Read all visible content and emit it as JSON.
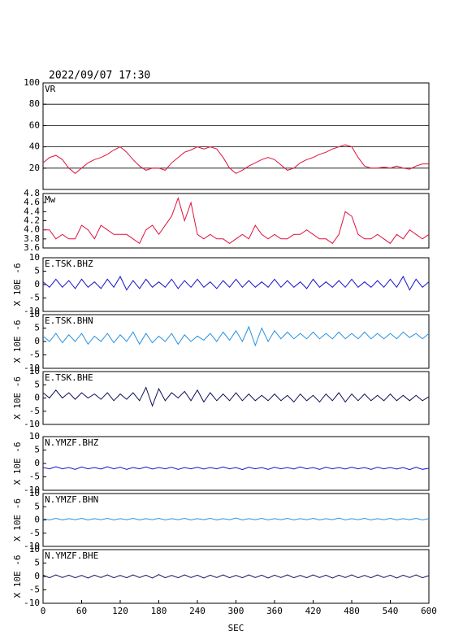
{
  "chart_data": [
    {
      "type": "line",
      "title": "2022/09/07 17:30",
      "label": "VR",
      "color": "#e0103c",
      "grid": true,
      "x": [
        0,
        10,
        20,
        30,
        40,
        50,
        60,
        70,
        80,
        90,
        100,
        110,
        120,
        130,
        140,
        150,
        160,
        170,
        180,
        190,
        200,
        210,
        220,
        230,
        240,
        250,
        260,
        270,
        280,
        290,
        300,
        310,
        320,
        330,
        340,
        350,
        360,
        370,
        380,
        390,
        400,
        410,
        420,
        430,
        440,
        450,
        460,
        470,
        480,
        490,
        500,
        510,
        520,
        530,
        540,
        550,
        560,
        570,
        580,
        590,
        600
      ],
      "values": [
        25,
        30,
        32,
        28,
        20,
        15,
        20,
        25,
        28,
        30,
        33,
        37,
        40,
        35,
        28,
        22,
        18,
        20,
        20,
        18,
        25,
        30,
        35,
        37,
        40,
        38,
        40,
        38,
        30,
        20,
        15,
        18,
        22,
        25,
        28,
        30,
        28,
        23,
        18,
        20,
        25,
        28,
        30,
        33,
        35,
        38,
        40,
        42,
        40,
        30,
        22,
        20,
        20,
        21,
        20,
        22,
        20,
        19,
        22,
        24,
        24
      ],
      "xlim": [
        0,
        600
      ],
      "ylim": [
        0,
        100
      ],
      "yticks": [
        20,
        40,
        60,
        80,
        100
      ]
    },
    {
      "type": "line",
      "label": "Mw",
      "color": "#e0103c",
      "x": [
        0,
        10,
        20,
        30,
        40,
        50,
        60,
        70,
        80,
        90,
        100,
        110,
        120,
        130,
        140,
        150,
        160,
        170,
        180,
        190,
        200,
        210,
        220,
        230,
        240,
        250,
        260,
        270,
        280,
        290,
        300,
        310,
        320,
        330,
        340,
        350,
        360,
        370,
        380,
        390,
        400,
        410,
        420,
        430,
        440,
        450,
        460,
        470,
        480,
        490,
        500,
        510,
        520,
        530,
        540,
        550,
        560,
        570,
        580,
        590,
        600
      ],
      "values": [
        4.0,
        4.0,
        3.8,
        3.9,
        3.8,
        3.8,
        4.1,
        4.0,
        3.8,
        4.1,
        4.0,
        3.9,
        3.9,
        3.9,
        3.8,
        3.7,
        4.0,
        4.1,
        3.9,
        4.1,
        4.3,
        4.7,
        4.2,
        4.6,
        3.9,
        3.8,
        3.9,
        3.8,
        3.8,
        3.7,
        3.8,
        3.9,
        3.8,
        4.1,
        3.9,
        3.8,
        3.9,
        3.8,
        3.8,
        3.9,
        3.9,
        4.0,
        3.9,
        3.8,
        3.8,
        3.7,
        3.9,
        4.4,
        4.3,
        3.9,
        3.8,
        3.8,
        3.9,
        3.8,
        3.7,
        3.9,
        3.8,
        4.0,
        3.9,
        3.8,
        3.9
      ],
      "xlim": [
        0,
        600
      ],
      "ylim": [
        3.6,
        4.8
      ],
      "yticks": [
        3.6,
        3.8,
        {
          "value": 4,
          "label": "4.0"
        },
        4.2,
        4.4,
        4.6,
        4.8
      ]
    },
    {
      "type": "line",
      "label": "E.TSK.BHZ",
      "ylabel": "X 10E -6",
      "color": "#1414c8",
      "x": [
        0,
        10,
        20,
        30,
        40,
        50,
        60,
        70,
        80,
        90,
        100,
        110,
        120,
        130,
        140,
        150,
        160,
        170,
        180,
        190,
        200,
        210,
        220,
        230,
        240,
        250,
        260,
        270,
        280,
        290,
        300,
        310,
        320,
        330,
        340,
        350,
        360,
        370,
        380,
        390,
        400,
        410,
        420,
        430,
        440,
        450,
        460,
        470,
        480,
        490,
        500,
        510,
        520,
        530,
        540,
        550,
        560,
        570,
        580,
        590,
        600
      ],
      "values": [
        1,
        -1,
        2,
        -1,
        1.5,
        -1.5,
        2,
        -1,
        1,
        -1.5,
        2,
        -1,
        3,
        -2,
        1.5,
        -1.5,
        2,
        -1,
        1,
        -1,
        2,
        -1.5,
        1.5,
        -1,
        2,
        -1,
        1,
        -1.5,
        1.5,
        -1,
        2,
        -1,
        1.5,
        -1,
        1,
        -1,
        2,
        -1,
        1.5,
        -1,
        1,
        -1.5,
        2,
        -1,
        1,
        -1,
        1.5,
        -1,
        2,
        -1,
        1,
        -1,
        1.5,
        -1,
        2,
        -1,
        3,
        -2,
        2,
        -1,
        1
      ],
      "xlim": [
        0,
        600
      ],
      "ylim": [
        -10,
        10
      ],
      "yticks": [
        -10,
        -5,
        0,
        5,
        10
      ]
    },
    {
      "type": "line",
      "label": "E.TSK.BHN",
      "ylabel": "X 10E -6",
      "color": "#2890e0",
      "x": [
        0,
        10,
        20,
        30,
        40,
        50,
        60,
        70,
        80,
        90,
        100,
        110,
        120,
        130,
        140,
        150,
        160,
        170,
        180,
        190,
        200,
        210,
        220,
        230,
        240,
        250,
        260,
        270,
        280,
        290,
        300,
        310,
        320,
        330,
        340,
        350,
        360,
        370,
        380,
        390,
        400,
        410,
        420,
        430,
        440,
        450,
        460,
        470,
        480,
        490,
        500,
        510,
        520,
        530,
        540,
        550,
        560,
        570,
        580,
        590,
        600
      ],
      "values": [
        2,
        0,
        3,
        -0.5,
        2.5,
        0,
        3,
        -1,
        2,
        0,
        3,
        -0.5,
        2.5,
        0,
        3.5,
        -1,
        3,
        -0.5,
        2,
        0,
        3,
        -1,
        2.5,
        0,
        2,
        0.5,
        3,
        0,
        3.5,
        0.5,
        4,
        0,
        5.5,
        -1.5,
        5,
        0,
        4,
        1,
        3.5,
        1,
        3,
        1,
        3.5,
        1,
        3,
        1,
        3.5,
        1,
        3,
        1,
        3.5,
        1,
        3,
        1,
        3,
        1,
        3.5,
        1.5,
        3,
        1,
        3
      ],
      "xlim": [
        0,
        600
      ],
      "ylim": [
        -10,
        10
      ],
      "yticks": [
        -10,
        -5,
        0,
        5,
        10
      ]
    },
    {
      "type": "line",
      "label": "E.TSK.BHE",
      "ylabel": "X 10E -6",
      "color": "#10105a",
      "x": [
        0,
        10,
        20,
        30,
        40,
        50,
        60,
        70,
        80,
        90,
        100,
        110,
        120,
        130,
        140,
        150,
        160,
        170,
        180,
        190,
        200,
        210,
        220,
        230,
        240,
        250,
        260,
        270,
        280,
        290,
        300,
        310,
        320,
        330,
        340,
        350,
        360,
        370,
        380,
        390,
        400,
        410,
        420,
        430,
        440,
        450,
        460,
        470,
        480,
        490,
        500,
        510,
        520,
        530,
        540,
        550,
        560,
        570,
        580,
        590,
        600
      ],
      "values": [
        2,
        0,
        3,
        0,
        2,
        -0.5,
        2,
        0,
        1.5,
        -0.5,
        2,
        -1,
        1.5,
        -0.5,
        2,
        -1,
        4,
        -3,
        3.5,
        -1,
        2,
        0,
        2.5,
        -1,
        3,
        -1.5,
        2,
        -1,
        1.5,
        -1,
        2,
        -1,
        1.5,
        -1,
        1,
        -1,
        1.5,
        -1,
        1,
        -1.5,
        1.5,
        -1,
        1,
        -1.5,
        1.5,
        -1,
        2,
        -1.5,
        1.5,
        -1,
        1.5,
        -1,
        1,
        -1,
        1.5,
        -1,
        1,
        -1,
        1,
        -1,
        0.5
      ],
      "xlim": [
        0,
        600
      ],
      "ylim": [
        -10,
        10
      ],
      "yticks": [
        -10,
        -5,
        0,
        5,
        10
      ]
    },
    {
      "type": "line",
      "label": "N.YMZF.BHZ",
      "ylabel": "X 10E -6",
      "color": "#1414c8",
      "x": [
        0,
        10,
        20,
        30,
        40,
        50,
        60,
        70,
        80,
        90,
        100,
        110,
        120,
        130,
        140,
        150,
        160,
        170,
        180,
        190,
        200,
        210,
        220,
        230,
        240,
        250,
        260,
        270,
        280,
        290,
        300,
        310,
        320,
        330,
        340,
        350,
        360,
        370,
        380,
        390,
        400,
        410,
        420,
        430,
        440,
        450,
        460,
        470,
        480,
        490,
        500,
        510,
        520,
        530,
        540,
        550,
        560,
        570,
        580,
        590,
        600
      ],
      "values": [
        -1.5,
        -2,
        -1.2,
        -2,
        -1.5,
        -2.2,
        -1.3,
        -2,
        -1.5,
        -2.1,
        -1.2,
        -2,
        -1.4,
        -2.2,
        -1.5,
        -2,
        -1.3,
        -2.1,
        -1.5,
        -2,
        -1.4,
        -2.2,
        -1.5,
        -2,
        -1.4,
        -2.1,
        -1.5,
        -2,
        -1.3,
        -2,
        -1.5,
        -2.3,
        -1.4,
        -2,
        -1.5,
        -2.2,
        -1.4,
        -2,
        -1.5,
        -2.1,
        -1.3,
        -2,
        -1.5,
        -2.2,
        -1.4,
        -2,
        -1.5,
        -2.1,
        -1.4,
        -2,
        -1.5,
        -2.2,
        -1.4,
        -2,
        -1.5,
        -2.1,
        -1.5,
        -2.3,
        -1.4,
        -2.2,
        -1.8
      ],
      "xlim": [
        0,
        600
      ],
      "ylim": [
        -10,
        10
      ],
      "yticks": [
        -10,
        -5,
        0,
        5,
        10
      ]
    },
    {
      "type": "line",
      "label": "N.YMZF.BHN",
      "ylabel": "X 10E -6",
      "color": "#2890e0",
      "x": [
        0,
        10,
        20,
        30,
        40,
        50,
        60,
        70,
        80,
        90,
        100,
        110,
        120,
        130,
        140,
        150,
        160,
        170,
        180,
        190,
        200,
        210,
        220,
        230,
        240,
        250,
        260,
        270,
        280,
        290,
        300,
        310,
        320,
        330,
        340,
        350,
        360,
        370,
        380,
        390,
        400,
        410,
        420,
        430,
        440,
        450,
        460,
        470,
        480,
        490,
        500,
        510,
        520,
        530,
        540,
        550,
        560,
        570,
        580,
        590,
        600
      ],
      "values": [
        0.5,
        0,
        0.6,
        0,
        0.5,
        0.1,
        0.6,
        0,
        0.5,
        0.1,
        0.6,
        0,
        0.5,
        0.1,
        0.6,
        0,
        0.5,
        0.1,
        0.6,
        0,
        0.5,
        0.1,
        0.6,
        0,
        0.5,
        0.1,
        0.6,
        0,
        0.5,
        0.1,
        0.7,
        0,
        0.5,
        0.1,
        0.6,
        0,
        0.5,
        0.1,
        0.6,
        0,
        0.5,
        0.1,
        0.6,
        0,
        0.5,
        0.1,
        0.7,
        0,
        0.5,
        0.1,
        0.6,
        0,
        0.5,
        0.1,
        0.6,
        0,
        0.5,
        0.1,
        0.6,
        0,
        0.5
      ],
      "xlim": [
        0,
        600
      ],
      "ylim": [
        -10,
        10
      ],
      "yticks": [
        -10,
        -5,
        0,
        5,
        10
      ]
    },
    {
      "type": "line",
      "label": "N.YMZF.BHE",
      "ylabel": "X 10E -6",
      "color": "#10105a",
      "xlabel": "SEC",
      "x": [
        0,
        10,
        20,
        30,
        40,
        50,
        60,
        70,
        80,
        90,
        100,
        110,
        120,
        130,
        140,
        150,
        160,
        170,
        180,
        190,
        200,
        210,
        220,
        230,
        240,
        250,
        260,
        270,
        280,
        290,
        300,
        310,
        320,
        330,
        340,
        350,
        360,
        370,
        380,
        390,
        400,
        410,
        420,
        430,
        440,
        450,
        460,
        470,
        480,
        490,
        500,
        510,
        520,
        530,
        540,
        550,
        560,
        570,
        580,
        590,
        600
      ],
      "values": [
        0.5,
        -0.5,
        0.6,
        -0.4,
        0.5,
        -0.5,
        0.4,
        -0.6,
        0.5,
        -0.4,
        0.6,
        -0.5,
        0.4,
        -0.5,
        0.6,
        -0.4,
        0.5,
        -0.6,
        0.7,
        -0.5,
        0.4,
        -0.5,
        0.6,
        -0.4,
        0.5,
        -0.6,
        0.5,
        -0.4,
        0.6,
        -0.5,
        0.4,
        -0.5,
        0.6,
        -0.4,
        0.5,
        -0.6,
        0.5,
        -0.4,
        0.6,
        -0.5,
        0.4,
        -0.5,
        0.6,
        -0.4,
        0.5,
        -0.6,
        0.5,
        -0.4,
        0.6,
        -0.5,
        0.4,
        -0.5,
        0.6,
        -0.4,
        0.5,
        -0.6,
        0.5,
        -0.4,
        0.6,
        -0.5,
        0.3
      ],
      "xlim": [
        0,
        600
      ],
      "ylim": [
        -10,
        10
      ],
      "yticks": [
        -10,
        -5,
        0,
        5,
        10
      ],
      "xticks": [
        0,
        60,
        120,
        180,
        240,
        300,
        360,
        420,
        480,
        540,
        600
      ]
    }
  ]
}
